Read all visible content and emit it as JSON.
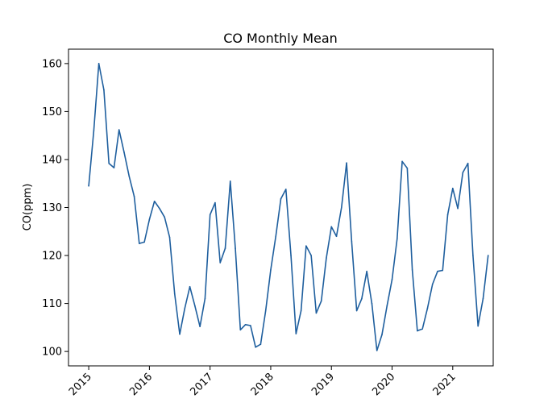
{
  "chart_data": {
    "type": "line",
    "title": "CO Monthly Mean",
    "xlabel": "",
    "ylabel": "CO(ppm)",
    "xlim": [
      "2014-09-01",
      "2021-09-01"
    ],
    "ylim": [
      97,
      163
    ],
    "x_ticks": [
      "2015",
      "2016",
      "2017",
      "2018",
      "2019",
      "2020",
      "2021"
    ],
    "y_ticks": [
      100,
      110,
      120,
      130,
      140,
      150,
      160
    ],
    "grid": false,
    "series_color": "#1f5f9e",
    "series": [
      {
        "x": [
          "2015-01",
          "2015-02",
          "2015-03",
          "2015-04",
          "2015-05",
          "2015-06",
          "2015-07",
          "2015-08",
          "2015-09",
          "2015-10",
          "2015-11",
          "2015-12",
          "2016-01",
          "2016-02",
          "2016-03",
          "2016-04",
          "2016-05",
          "2016-06",
          "2016-07",
          "2016-08",
          "2016-09",
          "2016-10",
          "2016-11",
          "2016-12",
          "2017-01",
          "2017-02",
          "2017-03",
          "2017-04",
          "2017-05",
          "2017-06",
          "2017-07",
          "2017-08",
          "2017-09",
          "2017-10",
          "2017-11",
          "2017-12",
          "2018-01",
          "2018-02",
          "2018-03",
          "2018-04",
          "2018-05",
          "2018-06",
          "2018-07",
          "2018-08",
          "2018-09",
          "2018-10",
          "2018-11",
          "2018-12",
          "2019-01",
          "2019-02",
          "2019-03",
          "2019-04",
          "2019-05",
          "2019-06",
          "2019-07",
          "2019-08",
          "2019-09",
          "2019-10",
          "2019-11",
          "2019-12",
          "2020-01",
          "2020-02",
          "2020-03",
          "2020-04",
          "2020-05",
          "2020-06",
          "2020-07",
          "2020-08",
          "2020-09",
          "2020-10",
          "2020-11",
          "2020-12",
          "2021-01",
          "2021-02",
          "2021-03",
          "2021-04",
          "2021-05",
          "2021-06",
          "2021-07",
          "2021-08"
        ],
        "values": [
          134.5,
          146.0,
          160.0,
          154.5,
          139.2,
          138.3,
          146.2,
          141.5,
          136.5,
          132.3,
          122.5,
          122.8,
          127.5,
          131.3,
          129.8,
          128.0,
          123.8,
          112.0,
          103.6,
          109.0,
          113.5,
          109.5,
          105.2,
          111.0,
          128.5,
          131.0,
          118.5,
          121.5,
          135.5,
          121.5,
          104.5,
          105.6,
          105.4,
          100.9,
          101.5,
          108.5,
          117.0,
          124.0,
          131.8,
          133.8,
          120.0,
          103.7,
          108.5,
          122.0,
          120.0,
          108.0,
          110.5,
          119.5,
          126.0,
          124.0,
          130.0,
          139.3,
          123.0,
          108.5,
          111.0,
          116.7,
          110.0,
          100.2,
          103.5,
          109.5,
          115.0,
          123.5,
          139.6,
          138.2,
          117.0,
          104.3,
          104.7,
          109.0,
          114.0,
          116.7,
          116.9,
          128.5,
          134.0,
          129.8,
          137.3,
          139.2,
          120.0,
          105.3,
          111.0,
          120.0
        ]
      }
    ]
  }
}
